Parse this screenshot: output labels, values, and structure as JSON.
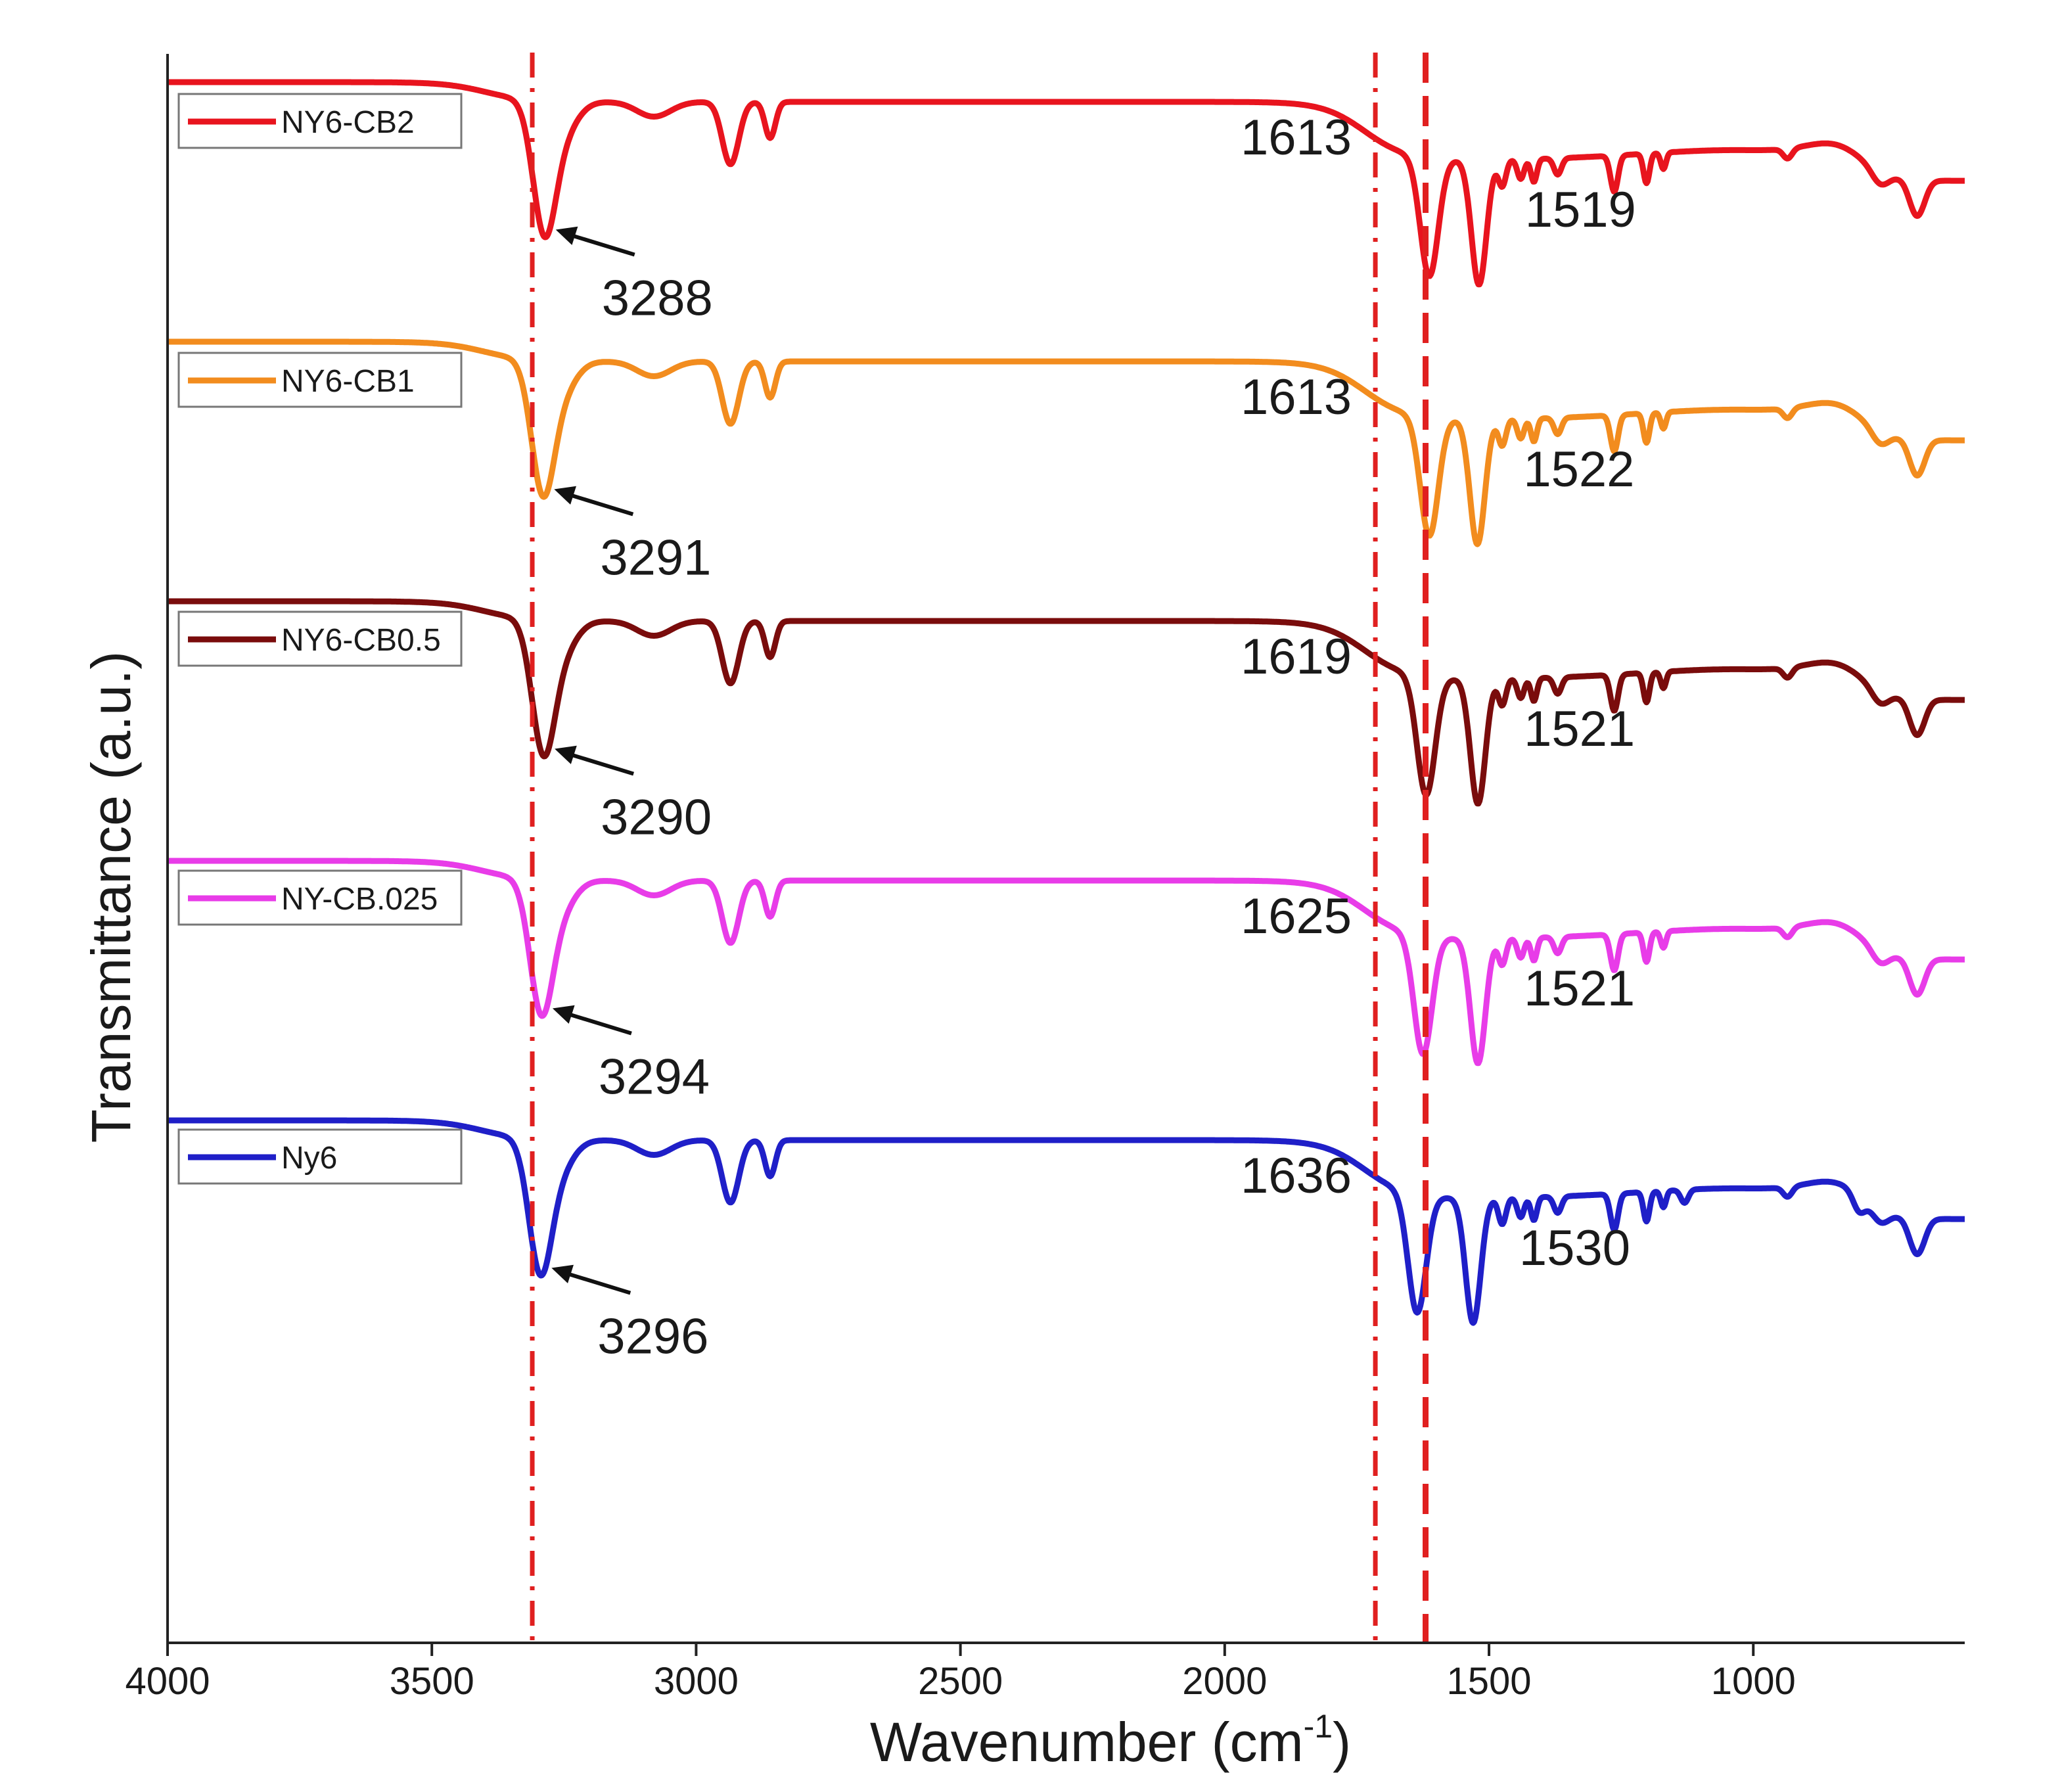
{
  "chart_data": {
    "type": "line",
    "title": "",
    "xlabel": "Wavenumber",
    "xlabel_unit_base": "(cm",
    "xlabel_unit_exp": "-1",
    "xlabel_unit_close": ")",
    "ylabel": "Transmittance (a.u.)",
    "xlim": [
      4000,
      600
    ],
    "x_ticks": [
      "4000",
      "3500",
      "3000",
      "2500",
      "2000",
      "1500",
      "1000"
    ],
    "reference_lines": [
      {
        "name": "amide-a-ref",
        "x": 3310,
        "style": "dashdot",
        "color": "#e02020"
      },
      {
        "name": "amide-i-ref",
        "x": 1715,
        "style": "dashdot",
        "color": "#e02020"
      },
      {
        "name": "amide-ii-ref",
        "x": 1620,
        "style": "dashed",
        "color": "#e02020"
      }
    ],
    "series": [
      {
        "name": "NY6-CB2",
        "color": "#e8141e",
        "baseline": 0.0,
        "nh": 3288,
        "c2": 1613,
        "c3": 1519,
        "labels": {
          "nh": "3288",
          "c2": "1613",
          "c3": "1519"
        }
      },
      {
        "name": "NY6-CB1",
        "color": "#f28c1e",
        "baseline": 1.0,
        "nh": 3291,
        "c2": 1613,
        "c3": 1522,
        "labels": {
          "nh": "3291",
          "c2": "1613",
          "c3": "1522"
        }
      },
      {
        "name": "NY6-CB0.5",
        "color": "#7a0c0c",
        "baseline": 2.0,
        "nh": 3290,
        "c2": 1619,
        "c3": 1521,
        "labels": {
          "nh": "3290",
          "c2": "1619",
          "c3": "1521"
        }
      },
      {
        "name": "NY-CB.025",
        "color": "#e83ce8",
        "baseline": 3.0,
        "nh": 3294,
        "c2": 1625,
        "c3": 1521,
        "labels": {
          "nh": "3294",
          "c2": "1625",
          "c3": "1521"
        }
      },
      {
        "name": "Ny6",
        "color": "#1f1fc8",
        "baseline": 4.0,
        "nh": 3296,
        "c2": 1636,
        "c3": 1530,
        "labels": {
          "nh": "3296",
          "c2": "1636",
          "c3": "1530"
        }
      }
    ]
  }
}
